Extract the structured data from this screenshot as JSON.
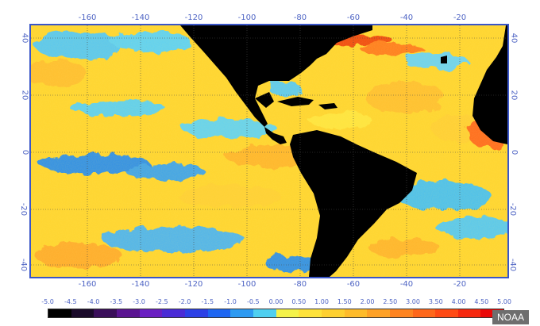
{
  "map": {
    "lon_labels": [
      "-160",
      "-140",
      "-120",
      "-100",
      "-80",
      "-60",
      "-40",
      "-20"
    ],
    "lat_labels": [
      "40",
      "20",
      "0",
      "-20",
      "-40"
    ]
  },
  "colorbar": {
    "labels": [
      "-5.0",
      "-4.5",
      "-4.0",
      "-3.5",
      "-3.0",
      "-2.5",
      "-2.0",
      "-1.5",
      "-1.0",
      "-0.5",
      "0.00",
      "0.50",
      "1.00",
      "1.50",
      "2.00",
      "2.50",
      "3.00",
      "3.50",
      "4.00",
      "4.50",
      "5.00"
    ],
    "colors": [
      "#000000",
      "#1a0a2a",
      "#3a0e5a",
      "#5a1491",
      "#6a1fc2",
      "#4a2bd6",
      "#2c40e6",
      "#1e66f2",
      "#2d9af2",
      "#4fcff0",
      "#f4f24a",
      "#ffe23a",
      "#ffd030",
      "#ffbb2a",
      "#ffa126",
      "#ff8420",
      "#ff671a",
      "#ff4a14",
      "#f6280e",
      "#ea0808"
    ]
  },
  "source": {
    "badge": "NOAA"
  }
}
